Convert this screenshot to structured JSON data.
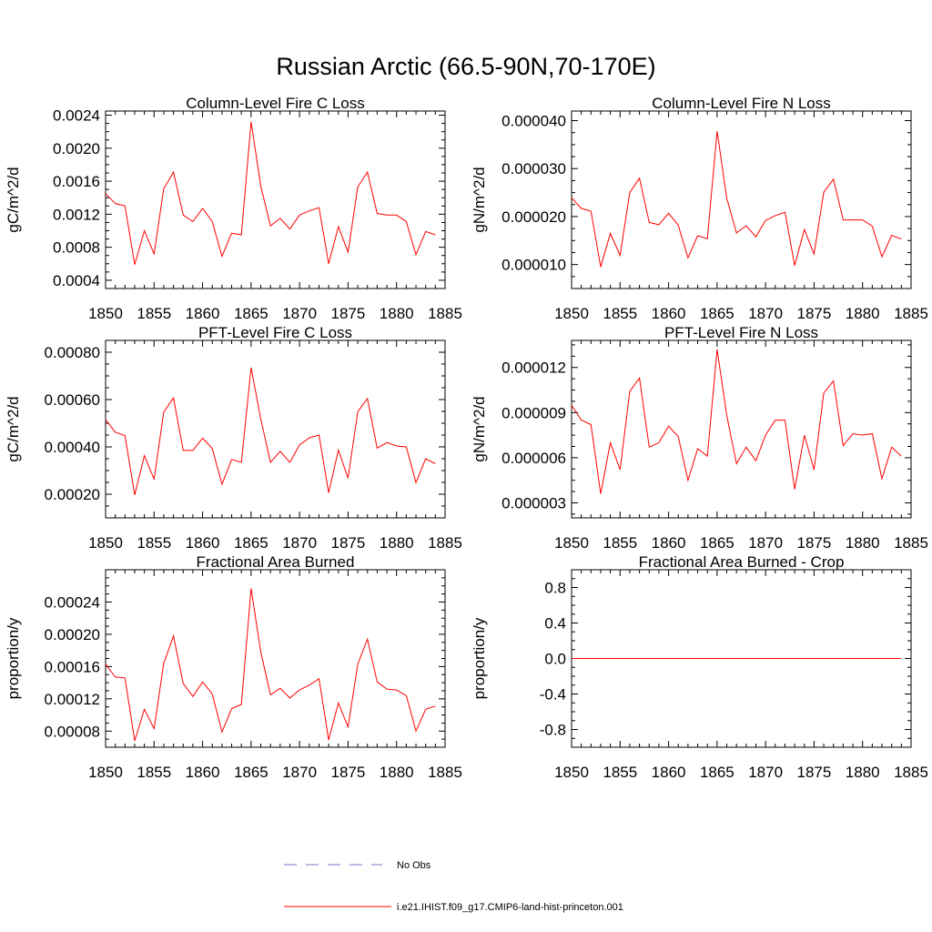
{
  "figure": {
    "title": "Russian Arctic (66.5-90N,70-170E)",
    "series_color": "#ff0000",
    "obs_color": "#7777cc"
  },
  "legend": {
    "obs_label": "No Obs",
    "model_label": "i.e21.IHIST.f09_g17.CMIP6-land-hist-princeton.001"
  },
  "chart_data": [
    {
      "type": "line",
      "title": "Column-Level Fire C Loss",
      "ylabel": "gC/m^2/d",
      "xlim": [
        1850,
        1885
      ],
      "xticks": [
        1850,
        1855,
        1860,
        1865,
        1870,
        1875,
        1880,
        1885
      ],
      "ylim": [
        0.0003,
        0.00245
      ],
      "yticks": [
        "0.0004",
        "0.0008",
        "0.0012",
        "0.0016",
        "0.0020",
        "0.0024"
      ],
      "x": [
        1850,
        1851,
        1852,
        1853,
        1854,
        1855,
        1856,
        1857,
        1858,
        1859,
        1860,
        1861,
        1862,
        1863,
        1864,
        1865,
        1866,
        1867,
        1868,
        1869,
        1870,
        1871,
        1872,
        1873,
        1874,
        1875,
        1876,
        1877,
        1878,
        1879,
        1880,
        1881,
        1882,
        1883,
        1884
      ],
      "series": [
        {
          "values": [
            0.00145,
            0.00133,
            0.0013,
            0.00059,
            0.001,
            0.00072,
            0.00151,
            0.00171,
            0.00119,
            0.00111,
            0.00127,
            0.00111,
            0.00069,
            0.00097,
            0.00095,
            0.00232,
            0.00154,
            0.00106,
            0.00115,
            0.00102,
            0.00119,
            0.00124,
            0.00128,
            0.0006,
            0.00105,
            0.00074,
            0.00153,
            0.00171,
            0.00121,
            0.00119,
            0.00119,
            0.00111,
            0.00071,
            0.00099,
            0.00095
          ]
        }
      ]
    },
    {
      "type": "line",
      "title": "Column-Level Fire N Loss",
      "ylabel": "gN/m^2/d",
      "xlim": [
        1850,
        1885
      ],
      "xticks": [
        1850,
        1855,
        1860,
        1865,
        1870,
        1875,
        1880,
        1885
      ],
      "ylim": [
        5e-06,
        4.2e-05
      ],
      "yticks": [
        "0.000010",
        "0.000020",
        "0.000030",
        "0.000040"
      ],
      "x": [
        1850,
        1851,
        1852,
        1853,
        1854,
        1855,
        1856,
        1857,
        1858,
        1859,
        1860,
        1861,
        1862,
        1863,
        1864,
        1865,
        1866,
        1867,
        1868,
        1869,
        1870,
        1871,
        1872,
        1873,
        1874,
        1875,
        1876,
        1877,
        1878,
        1879,
        1880,
        1881,
        1882,
        1883,
        1884
      ],
      "series": [
        {
          "values": [
            2.39e-05,
            2.17e-05,
            2.11e-05,
            9.5e-06,
            1.65e-05,
            1.19e-05,
            2.5e-05,
            2.8e-05,
            1.88e-05,
            1.83e-05,
            2.07e-05,
            1.82e-05,
            1.14e-05,
            1.6e-05,
            1.54e-05,
            3.78e-05,
            2.38e-05,
            1.66e-05,
            1.81e-05,
            1.58e-05,
            1.92e-05,
            2.02e-05,
            2.09e-05,
            9.8e-06,
            1.73e-05,
            1.22e-05,
            2.51e-05,
            2.78e-05,
            1.93e-05,
            1.93e-05,
            1.93e-05,
            1.8e-05,
            1.16e-05,
            1.61e-05,
            1.53e-05
          ]
        }
      ]
    },
    {
      "type": "line",
      "title": "PFT-Level Fire C Loss",
      "ylabel": "gC/m^2/d",
      "xlim": [
        1850,
        1885
      ],
      "xticks": [
        1850,
        1855,
        1860,
        1865,
        1870,
        1875,
        1880,
        1885
      ],
      "ylim": [
        0.0001,
        0.00085
      ],
      "yticks": [
        "0.00020",
        "0.00040",
        "0.00060",
        "0.00080"
      ],
      "x": [
        1850,
        1851,
        1852,
        1853,
        1854,
        1855,
        1856,
        1857,
        1858,
        1859,
        1860,
        1861,
        1862,
        1863,
        1864,
        1865,
        1866,
        1867,
        1868,
        1869,
        1870,
        1871,
        1872,
        1873,
        1874,
        1875,
        1876,
        1877,
        1878,
        1879,
        1880,
        1881,
        1882,
        1883,
        1884
      ],
      "series": [
        {
          "values": [
            0.000515,
            0.000462,
            0.000448,
            0.000197,
            0.000363,
            0.000264,
            0.000547,
            0.000607,
            0.000385,
            0.000385,
            0.000437,
            0.000393,
            0.000242,
            0.000347,
            0.000335,
            0.000735,
            0.000518,
            0.000335,
            0.000381,
            0.000335,
            0.000408,
            0.000438,
            0.00045,
            0.000206,
            0.000387,
            0.000268,
            0.000549,
            0.000604,
            0.000395,
            0.000418,
            0.000404,
            0.0004,
            0.000249,
            0.00035,
            0.000329
          ]
        }
      ]
    },
    {
      "type": "line",
      "title": "PFT-Level Fire N Loss",
      "ylabel": "gN/m^2/d",
      "xlim": [
        1850,
        1885
      ],
      "xticks": [
        1850,
        1855,
        1860,
        1865,
        1870,
        1875,
        1880,
        1885
      ],
      "ylim": [
        2e-06,
        1.38e-05
      ],
      "yticks": [
        "0.000003",
        "0.000006",
        "0.000009",
        "0.000012"
      ],
      "x": [
        1850,
        1851,
        1852,
        1853,
        1854,
        1855,
        1856,
        1857,
        1858,
        1859,
        1860,
        1861,
        1862,
        1863,
        1864,
        1865,
        1866,
        1867,
        1868,
        1869,
        1870,
        1871,
        1872,
        1873,
        1874,
        1875,
        1876,
        1877,
        1878,
        1879,
        1880,
        1881,
        1882,
        1883,
        1884
      ],
      "series": [
        {
          "values": [
            9.5e-06,
            8.5e-06,
            8.2e-06,
            3.6e-06,
            7e-06,
            5.2e-06,
            1.04e-05,
            1.13e-05,
            6.7e-06,
            7e-06,
            8.1e-06,
            7.4e-06,
            4.5e-06,
            6.6e-06,
            6.1e-06,
            1.32e-05,
            8.8e-06,
            5.6e-06,
            6.7e-06,
            5.8e-06,
            7.5e-06,
            8.5e-06,
            8.5e-06,
            3.9e-06,
            7.5e-06,
            5.2e-06,
            1.03e-05,
            1.11e-05,
            6.8e-06,
            7.6e-06,
            7.5e-06,
            7.6e-06,
            4.6e-06,
            6.7e-06,
            6.1e-06
          ]
        }
      ]
    },
    {
      "type": "line",
      "title": "Fractional Area Burned",
      "ylabel": "proportion/y",
      "xlim": [
        1850,
        1885
      ],
      "xticks": [
        1850,
        1855,
        1860,
        1865,
        1870,
        1875,
        1880,
        1885
      ],
      "ylim": [
        6e-05,
        0.00028
      ],
      "yticks": [
        "0.00008",
        "0.00012",
        "0.00016",
        "0.00020",
        "0.00024"
      ],
      "x": [
        1850,
        1851,
        1852,
        1853,
        1854,
        1855,
        1856,
        1857,
        1858,
        1859,
        1860,
        1861,
        1862,
        1863,
        1864,
        1865,
        1866,
        1867,
        1868,
        1869,
        1870,
        1871,
        1872,
        1873,
        1874,
        1875,
        1876,
        1877,
        1878,
        1879,
        1880,
        1881,
        1882,
        1883,
        1884
      ],
      "series": [
        {
          "values": [
            0.000163,
            0.000147,
            0.000146,
            6.8e-05,
            0.000107,
            8.3e-05,
            0.000164,
            0.000198,
            0.000139,
            0.000123,
            0.000141,
            0.000126,
            7.9e-05,
            0.000108,
            0.000113,
            0.000257,
            0.000178,
            0.000125,
            0.000133,
            0.000121,
            0.000131,
            0.000137,
            0.000145,
            6.9e-05,
            0.000115,
            8.5e-05,
            0.000163,
            0.000194,
            0.000141,
            0.000132,
            0.000131,
            0.000124,
            8e-05,
            0.000107,
            0.000111
          ]
        }
      ]
    },
    {
      "type": "line",
      "title": "Fractional Area Burned - Crop",
      "ylabel": "proportion/y",
      "xlim": [
        1850,
        1885
      ],
      "xticks": [
        1850,
        1855,
        1860,
        1865,
        1870,
        1875,
        1880,
        1885
      ],
      "ylim": [
        -1,
        1
      ],
      "yticks": [
        "-0.8",
        "-0.4",
        "0.0",
        "0.4",
        "0.8"
      ],
      "x": [
        1850,
        1851,
        1852,
        1853,
        1854,
        1855,
        1856,
        1857,
        1858,
        1859,
        1860,
        1861,
        1862,
        1863,
        1864,
        1865,
        1866,
        1867,
        1868,
        1869,
        1870,
        1871,
        1872,
        1873,
        1874,
        1875,
        1876,
        1877,
        1878,
        1879,
        1880,
        1881,
        1882,
        1883,
        1884
      ],
      "series": [
        {
          "values": [
            0,
            0,
            0,
            0,
            0,
            0,
            0,
            0,
            0,
            0,
            0,
            0,
            0,
            0,
            0,
            0,
            0,
            0,
            0,
            0,
            0,
            0,
            0,
            0,
            0,
            0,
            0,
            0,
            0,
            0,
            0,
            0,
            0,
            0,
            0
          ]
        }
      ]
    }
  ]
}
